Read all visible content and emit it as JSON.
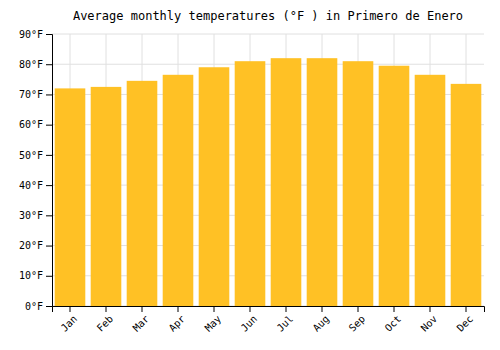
{
  "chart_data": {
    "type": "bar",
    "title": "Average monthly temperatures (°F ) in Primero de Enero",
    "categories": [
      "Jan",
      "Feb",
      "Mar",
      "Apr",
      "May",
      "Jun",
      "Jul",
      "Aug",
      "Sep",
      "Oct",
      "Nov",
      "Dec"
    ],
    "values": [
      72,
      72.5,
      74.5,
      76.5,
      79,
      81,
      82,
      82,
      81,
      79.5,
      76.5,
      73.5
    ],
    "color": "#FFC125",
    "ylim": [
      0,
      90
    ],
    "yticks": [
      {
        "value": 0,
        "label": "0°F"
      },
      {
        "value": 10,
        "label": "10°F"
      },
      {
        "value": 20,
        "label": "20°F"
      },
      {
        "value": 30,
        "label": "30°F"
      },
      {
        "value": 40,
        "label": "40°F"
      },
      {
        "value": 50,
        "label": "50°F"
      },
      {
        "value": 60,
        "label": "60°F"
      },
      {
        "value": 70,
        "label": "70°F"
      },
      {
        "value": 80,
        "label": "80°F"
      },
      {
        "value": 90,
        "label": "90°F"
      }
    ],
    "grid": true
  }
}
